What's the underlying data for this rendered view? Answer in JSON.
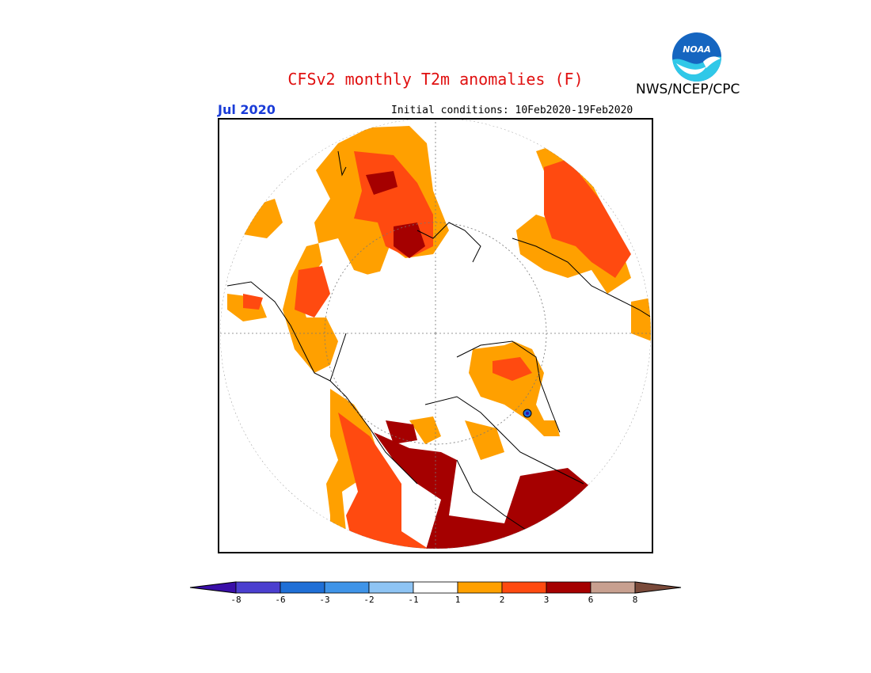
{
  "header": {
    "title": "CFSv2 monthly T2m anomalies (F)",
    "month": "Jul 2020",
    "initial_conditions": "Initial conditions: 10Feb2020-19Feb2020",
    "agency": "NWS/NCEP/CPC",
    "logo_text": "NOAA"
  },
  "map": {
    "projection": "north polar stereographic",
    "variable": "2m temperature anomaly"
  },
  "colorbar": {
    "labels": [
      "-8",
      "-6",
      "-3",
      "-2",
      "-1",
      "1",
      "2",
      "3",
      "6",
      "8"
    ],
    "colors": [
      "#3a0fa8",
      "#4b3fcf",
      "#1f6fd6",
      "#3f94e8",
      "#8ec4f4",
      "#ffffff",
      "#ffa000",
      "#ff4a10",
      "#a50000",
      "#c8a090",
      "#7a4a3a"
    ]
  },
  "colors": {
    "title": "#e01010",
    "month": "#1a3cd8",
    "positive_1_2": "#ffa000",
    "positive_2_3": "#ff4a10",
    "positive_3_6": "#a50000"
  }
}
